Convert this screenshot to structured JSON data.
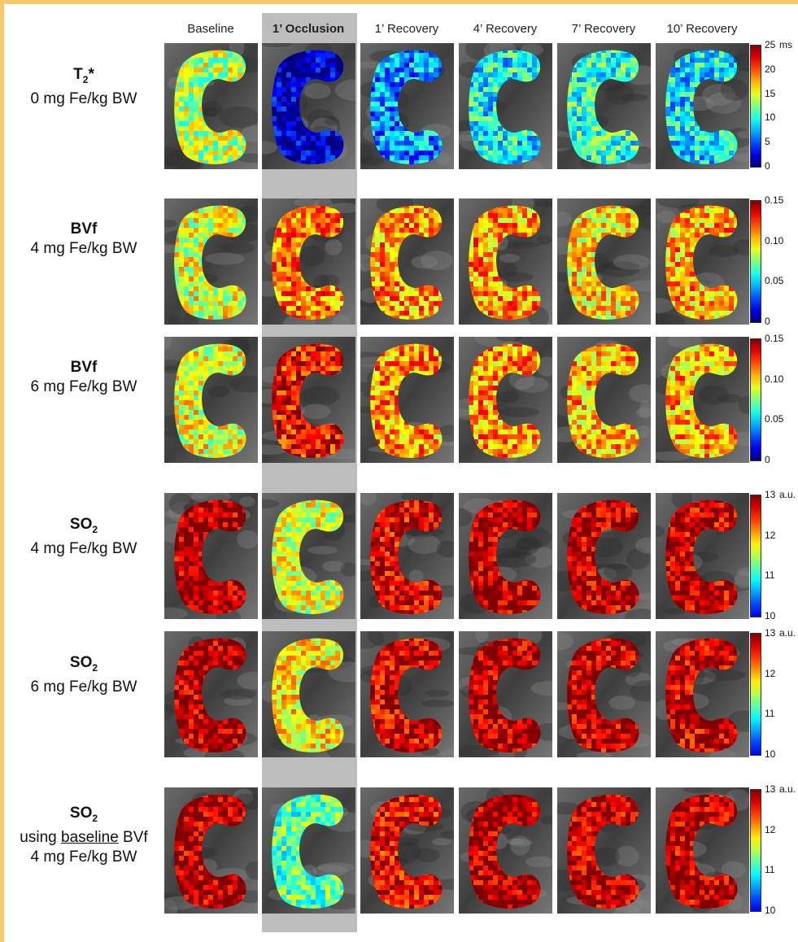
{
  "columns": [
    {
      "label": "Baseline",
      "bold": false
    },
    {
      "label": "1’ Occlusion",
      "bold": true
    },
    {
      "label": "1’ Recovery",
      "bold": false
    },
    {
      "label": "4’ Recovery",
      "bold": false
    },
    {
      "label": "7’ Recovery",
      "bold": false
    },
    {
      "label": "10’ Recovery",
      "bold": false
    }
  ],
  "rows": [
    {
      "title_main": "T",
      "title_sub": "2",
      "title_suffix": "*",
      "line2": "0 mg Fe/kg BW",
      "line3": "",
      "colormap": "jet",
      "colorbar": {
        "ticks": [
          "25",
          "20",
          "15",
          "10",
          "5",
          "0"
        ],
        "unit": "ms"
      },
      "tile_levels": [
        0.55,
        0.05,
        0.28,
        0.38,
        0.42,
        0.36
      ]
    },
    {
      "title_main": "BVf",
      "title_sub": "",
      "title_suffix": "",
      "line2": "4 mg Fe/kg BW",
      "line3": "",
      "colormap": "jet",
      "colorbar": {
        "ticks": [
          "0.15",
          "0.10",
          "0.05",
          "0"
        ],
        "unit": ""
      },
      "tile_levels": [
        0.6,
        0.75,
        0.72,
        0.72,
        0.65,
        0.7
      ]
    },
    {
      "title_main": "BVf",
      "title_sub": "",
      "title_suffix": "",
      "line2": "6 mg Fe/kg BW",
      "line3": "",
      "colormap": "jet",
      "colorbar": {
        "ticks": [
          "0.15",
          "0.10",
          "0.05",
          "0"
        ],
        "unit": ""
      },
      "tile_levels": [
        0.6,
        0.88,
        0.72,
        0.72,
        0.7,
        0.7
      ]
    },
    {
      "title_main": "SO",
      "title_sub": "2",
      "title_suffix": "",
      "line2": "4 mg Fe/kg BW",
      "line3": "",
      "colormap": "so2",
      "colorbar": {
        "ticks": [
          "13",
          "12",
          "11",
          "10"
        ],
        "unit": "a.u."
      },
      "tile_levels": [
        0.95,
        0.55,
        0.9,
        0.95,
        0.93,
        0.92
      ]
    },
    {
      "title_main": "SO",
      "title_sub": "2",
      "title_suffix": "",
      "line2": "6 mg Fe/kg BW",
      "line3": "",
      "colormap": "so2",
      "colorbar": {
        "ticks": [
          "13",
          "12",
          "11",
          "10"
        ],
        "unit": "a.u."
      },
      "tile_levels": [
        0.95,
        0.6,
        0.9,
        0.95,
        0.93,
        0.92
      ]
    },
    {
      "title_main": "SO",
      "title_sub": "2",
      "title_suffix": "",
      "line2_pre": "using ",
      "line2_u": "baseline",
      "line2_post": " BVf",
      "line3": "4 mg Fe/kg BW",
      "colormap": "so2",
      "colorbar": {
        "ticks": [
          "13",
          "12",
          "11",
          "10"
        ],
        "unit": "a.u."
      },
      "tile_levels": [
        0.95,
        0.4,
        0.88,
        0.95,
        0.93,
        0.93
      ]
    }
  ]
}
